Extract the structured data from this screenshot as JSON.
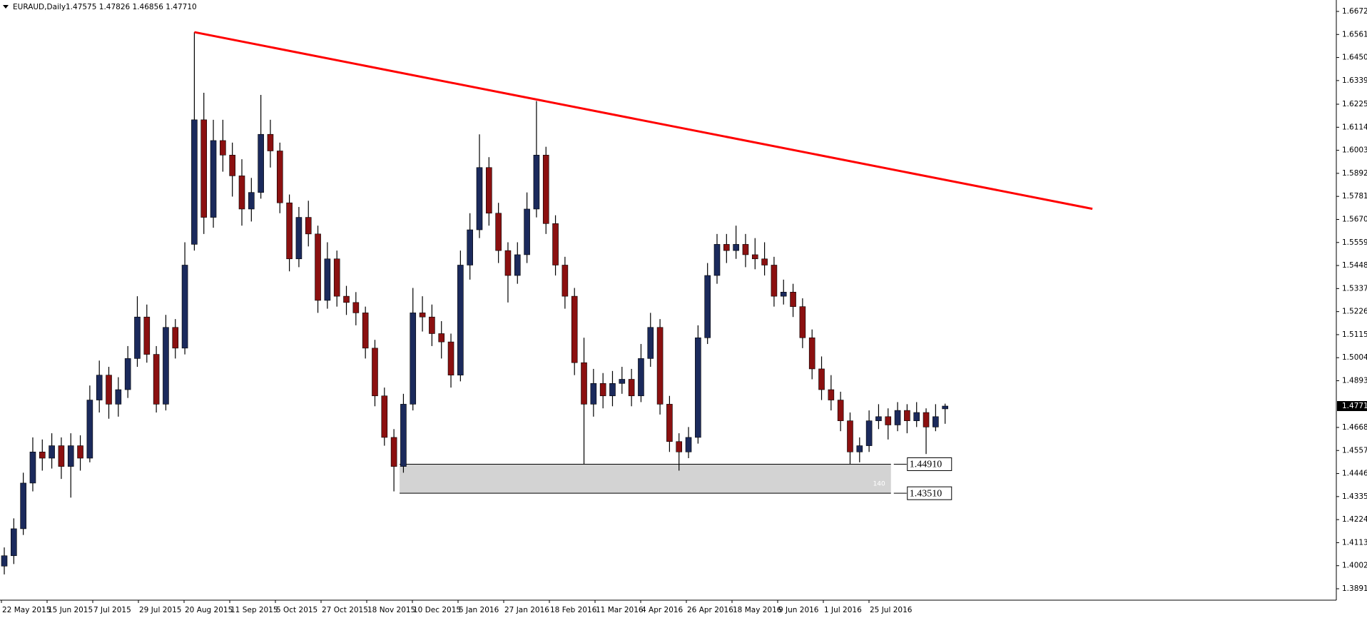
{
  "chart_data": {
    "type": "candlestick",
    "symbol": "EURAUD,Daily",
    "quote": "1.47575 1.47826 1.46856 1.47710",
    "up_color": "#1b2a5c",
    "down_color": "#8b1010",
    "wick_color": "#000000",
    "ohlc": [
      [
        1.4,
        1.409,
        1.396,
        1.405
      ],
      [
        1.405,
        1.423,
        1.401,
        1.418
      ],
      [
        1.418,
        1.445,
        1.415,
        1.44
      ],
      [
        1.44,
        1.462,
        1.436,
        1.455
      ],
      [
        1.455,
        1.461,
        1.446,
        1.452
      ],
      [
        1.452,
        1.464,
        1.447,
        1.458
      ],
      [
        1.458,
        1.462,
        1.442,
        1.448
      ],
      [
        1.448,
        1.464,
        1.433,
        1.458
      ],
      [
        1.458,
        1.463,
        1.446,
        1.452
      ],
      [
        1.452,
        1.487,
        1.45,
        1.48
      ],
      [
        1.48,
        1.499,
        1.474,
        1.492
      ],
      [
        1.492,
        1.496,
        1.471,
        1.478
      ],
      [
        1.478,
        1.491,
        1.472,
        1.485
      ],
      [
        1.485,
        1.506,
        1.481,
        1.5
      ],
      [
        1.5,
        1.53,
        1.496,
        1.52
      ],
      [
        1.52,
        1.526,
        1.498,
        1.502
      ],
      [
        1.502,
        1.506,
        1.474,
        1.478
      ],
      [
        1.478,
        1.521,
        1.475,
        1.515
      ],
      [
        1.515,
        1.519,
        1.5,
        1.505
      ],
      [
        1.505,
        1.556,
        1.502,
        1.545
      ],
      [
        1.555,
        1.6572,
        1.552,
        1.615
      ],
      [
        1.615,
        1.628,
        1.56,
        1.568
      ],
      [
        1.568,
        1.615,
        1.563,
        1.605
      ],
      [
        1.605,
        1.615,
        1.59,
        1.598
      ],
      [
        1.598,
        1.604,
        1.578,
        1.588
      ],
      [
        1.588,
        1.596,
        1.564,
        1.572
      ],
      [
        1.572,
        1.587,
        1.566,
        1.58
      ],
      [
        1.58,
        1.627,
        1.577,
        1.608
      ],
      [
        1.608,
        1.615,
        1.592,
        1.6
      ],
      [
        1.6,
        1.604,
        1.57,
        1.575
      ],
      [
        1.575,
        1.579,
        1.542,
        1.548
      ],
      [
        1.548,
        1.573,
        1.544,
        1.568
      ],
      [
        1.568,
        1.576,
        1.554,
        1.56
      ],
      [
        1.56,
        1.564,
        1.522,
        1.528
      ],
      [
        1.528,
        1.556,
        1.524,
        1.548
      ],
      [
        1.548,
        1.552,
        1.525,
        1.53
      ],
      [
        1.53,
        1.535,
        1.521,
        1.527
      ],
      [
        1.527,
        1.532,
        1.516,
        1.522
      ],
      [
        1.522,
        1.525,
        1.5,
        1.505
      ],
      [
        1.505,
        1.509,
        1.477,
        1.482
      ],
      [
        1.482,
        1.486,
        1.458,
        1.462
      ],
      [
        1.462,
        1.466,
        1.436,
        1.448
      ],
      [
        1.448,
        1.483,
        1.445,
        1.478
      ],
      [
        1.478,
        1.534,
        1.475,
        1.522
      ],
      [
        1.522,
        1.53,
        1.513,
        1.52
      ],
      [
        1.52,
        1.526,
        1.506,
        1.512
      ],
      [
        1.512,
        1.518,
        1.5,
        1.508
      ],
      [
        1.508,
        1.512,
        1.486,
        1.492
      ],
      [
        1.492,
        1.552,
        1.489,
        1.545
      ],
      [
        1.545,
        1.57,
        1.538,
        1.562
      ],
      [
        1.562,
        1.608,
        1.558,
        1.592
      ],
      [
        1.592,
        1.597,
        1.564,
        1.57
      ],
      [
        1.57,
        1.575,
        1.546,
        1.552
      ],
      [
        1.552,
        1.556,
        1.527,
        1.54
      ],
      [
        1.54,
        1.556,
        1.536,
        1.55
      ],
      [
        1.55,
        1.58,
        1.546,
        1.572
      ],
      [
        1.572,
        1.624,
        1.568,
        1.598
      ],
      [
        1.598,
        1.602,
        1.56,
        1.565
      ],
      [
        1.565,
        1.569,
        1.54,
        1.545
      ],
      [
        1.545,
        1.549,
        1.524,
        1.53
      ],
      [
        1.53,
        1.534,
        1.492,
        1.498
      ],
      [
        1.498,
        1.51,
        1.449,
        1.478
      ],
      [
        1.478,
        1.495,
        1.472,
        1.488
      ],
      [
        1.488,
        1.493,
        1.476,
        1.482
      ],
      [
        1.482,
        1.494,
        1.477,
        1.488
      ],
      [
        1.488,
        1.496,
        1.483,
        1.49
      ],
      [
        1.49,
        1.495,
        1.477,
        1.482
      ],
      [
        1.482,
        1.507,
        1.479,
        1.5
      ],
      [
        1.5,
        1.522,
        1.496,
        1.515
      ],
      [
        1.515,
        1.519,
        1.473,
        1.478
      ],
      [
        1.478,
        1.482,
        1.455,
        1.46
      ],
      [
        1.46,
        1.464,
        1.446,
        1.455
      ],
      [
        1.455,
        1.467,
        1.452,
        1.462
      ],
      [
        1.462,
        1.516,
        1.459,
        1.51
      ],
      [
        1.51,
        1.546,
        1.507,
        1.54
      ],
      [
        1.54,
        1.56,
        1.536,
        1.555
      ],
      [
        1.555,
        1.56,
        1.546,
        1.552
      ],
      [
        1.552,
        1.564,
        1.548,
        1.555
      ],
      [
        1.555,
        1.56,
        1.544,
        1.55
      ],
      [
        1.55,
        1.558,
        1.543,
        1.548
      ],
      [
        1.548,
        1.556,
        1.54,
        1.545
      ],
      [
        1.545,
        1.549,
        1.525,
        1.53
      ],
      [
        1.53,
        1.538,
        1.526,
        1.532
      ],
      [
        1.532,
        1.536,
        1.52,
        1.525
      ],
      [
        1.525,
        1.529,
        1.505,
        1.51
      ],
      [
        1.51,
        1.514,
        1.49,
        1.495
      ],
      [
        1.495,
        1.501,
        1.48,
        1.485
      ],
      [
        1.485,
        1.492,
        1.475,
        1.48
      ],
      [
        1.48,
        1.484,
        1.465,
        1.47
      ],
      [
        1.47,
        1.474,
        1.449,
        1.455
      ],
      [
        1.455,
        1.462,
        1.45,
        1.458
      ],
      [
        1.458,
        1.475,
        1.455,
        1.47
      ],
      [
        1.47,
        1.478,
        1.466,
        1.472
      ],
      [
        1.472,
        1.476,
        1.461,
        1.468
      ],
      [
        1.468,
        1.479,
        1.465,
        1.475
      ],
      [
        1.475,
        1.478,
        1.464,
        1.47
      ],
      [
        1.47,
        1.479,
        1.467,
        1.474
      ],
      [
        1.474,
        1.476,
        1.454,
        1.467
      ],
      [
        1.467,
        1.478,
        1.465,
        1.472
      ],
      [
        1.47575,
        1.47826,
        1.46856,
        1.4771
      ]
    ],
    "categories": [
      "22 May 2015",
      "15 Jun 2015",
      "7 Jul 2015",
      "29 Jul 2015",
      "20 Aug 2015",
      "11 Sep 2015",
      "5 Oct 2015",
      "27 Oct 2015",
      "18 Nov 2015",
      "10 Dec 2015",
      "5 Jan 2016",
      "27 Jan 2016",
      "18 Feb 2016",
      "11 Mar 2016",
      "4 Apr 2016",
      "26 Apr 2016",
      "18 May 2016",
      "9 Jun 2016",
      "1 Jul 2016",
      "25 Jul 2016"
    ],
    "ylim": [
      1.3836,
      1.6727
    ],
    "yticks": [
      {
        "value": 1.6672,
        "label": "1.66720"
      },
      {
        "value": 1.6561,
        "label": "1.65610"
      },
      {
        "value": 1.645,
        "label": "1.64500"
      },
      {
        "value": 1.6339,
        "label": "1.63390"
      },
      {
        "value": 1.6225,
        "label": "1.62250"
      },
      {
        "value": 1.6114,
        "label": "1.61140"
      },
      {
        "value": 1.6003,
        "label": "1.60030"
      },
      {
        "value": 1.5892,
        "label": "1.58920"
      },
      {
        "value": 1.5781,
        "label": "1.57810"
      },
      {
        "value": 1.567,
        "label": "1.56700"
      },
      {
        "value": 1.5559,
        "label": "1.55590"
      },
      {
        "value": 1.5448,
        "label": "1.54480"
      },
      {
        "value": 1.5337,
        "label": "1.53370"
      },
      {
        "value": 1.5226,
        "label": "1.52260"
      },
      {
        "value": 1.5115,
        "label": "1.51150"
      },
      {
        "value": 1.5004,
        "label": "1.50040"
      },
      {
        "value": 1.4893,
        "label": "1.48930"
      },
      {
        "value": 1.4668,
        "label": "1.46680"
      },
      {
        "value": 1.4557,
        "label": "1.45570"
      },
      {
        "value": 1.4446,
        "label": "1.44460"
      },
      {
        "value": 1.4335,
        "label": "1.43350"
      },
      {
        "value": 1.4224,
        "label": "1.42240"
      },
      {
        "value": 1.4113,
        "label": "1.41130"
      },
      {
        "value": 1.4002,
        "label": "1.40020"
      },
      {
        "value": 1.3891,
        "label": "1.38910"
      }
    ],
    "current_price": {
      "value": 1.4771,
      "label": "1.47710"
    },
    "trendline": {
      "x": [
        20,
        114.5
      ],
      "y": [
        1.6572,
        1.5721
      ],
      "color": "#ff0000"
    },
    "zone": {
      "x": [
        41.6,
        93.3
      ],
      "top": {
        "value": 1.4491,
        "label": "1.44910"
      },
      "bottom": {
        "value": 1.4351,
        "label": "1.43510"
      },
      "label": "140",
      "color": "#d3d3d3"
    }
  }
}
